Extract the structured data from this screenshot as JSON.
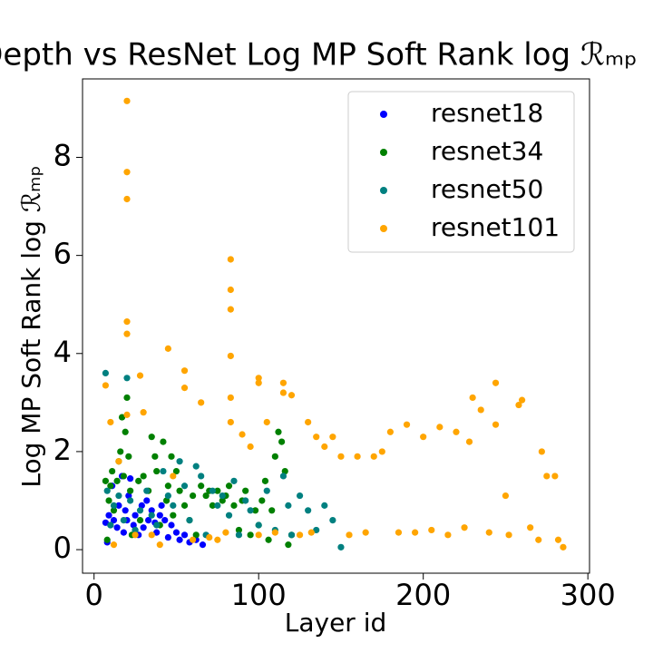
{
  "chart_data": {
    "type": "scatter",
    "title": "Depth vs ResNet Log MP Soft Rank log ℛₘₚ",
    "x_label": "Layer id",
    "y_label": "Log MP Soft Rank log ℛₘₚ",
    "xlim": [
      -7,
      301
    ],
    "ylim": [
      -0.48,
      9.6
    ],
    "xticks": [
      0,
      100,
      200,
      300
    ],
    "yticks": [
      0,
      2,
      4,
      6,
      8
    ],
    "grid": false,
    "legend": "upper right",
    "series": [
      {
        "name": "resnet18",
        "color": "#0000ff",
        "x": [
          7,
          8,
          9,
          10,
          11,
          12,
          14,
          15,
          17,
          18,
          19,
          20,
          21,
          22,
          24,
          25,
          27,
          29,
          30,
          32,
          33,
          35,
          37,
          38,
          40,
          41,
          43,
          45,
          47,
          50,
          52,
          55,
          58,
          62,
          66
        ],
        "values": [
          0.55,
          0.15,
          0.7,
          0.5,
          1.3,
          0.6,
          0.45,
          0.9,
          1.5,
          0.35,
          0.8,
          0.6,
          1.1,
          1.45,
          0.5,
          0.7,
          0.3,
          0.9,
          0.45,
          1.0,
          0.6,
          0.8,
          0.55,
          0.35,
          0.7,
          0.9,
          0.6,
          0.25,
          0.5,
          0.35,
          0.2,
          0.3,
          0.15,
          0.2,
          0.1
        ]
      },
      {
        "name": "resnet34",
        "color": "#008000",
        "x": [
          7,
          8,
          9,
          10,
          11,
          12,
          14,
          15,
          16,
          17,
          18,
          19,
          20,
          21,
          22,
          23,
          25,
          27,
          28,
          30,
          33,
          35,
          37,
          38,
          40,
          42,
          44,
          45,
          47,
          48,
          50,
          52,
          55,
          58,
          60,
          62,
          65,
          68,
          70,
          72,
          75,
          78,
          80,
          82,
          85,
          88,
          90,
          92,
          95,
          98,
          100,
          102,
          104,
          106,
          108,
          110,
          112,
          114,
          116,
          118,
          120
        ],
        "values": [
          1.4,
          0.2,
          1.0,
          1.3,
          1.6,
          0.8,
          1.4,
          1.8,
          2.0,
          2.7,
          1.5,
          2.4,
          3.1,
          1.9,
          1.2,
          0.3,
          0.4,
          1.4,
          0.6,
          1.5,
          1.2,
          2.3,
          1.9,
          1.6,
          0.5,
          2.2,
          1.0,
          1.3,
          1.9,
          0.7,
          1.6,
          1.2,
          0.9,
          0.6,
          1.1,
          0.3,
          1.3,
          1.1,
          1.2,
          0.9,
          1.2,
          1.0,
          1.1,
          1.3,
          0.9,
          0.4,
          1.0,
          1.2,
          0.3,
          0.8,
          0.5,
          1.0,
          1.4,
          0.2,
          0.8,
          1.9,
          2.4,
          2.2,
          1.6,
          0.1,
          0.3
        ]
      },
      {
        "name": "resnet50",
        "color": "#008080",
        "x": [
          7,
          8,
          10,
          12,
          15,
          18,
          20,
          22,
          25,
          28,
          32,
          35,
          38,
          42,
          45,
          48,
          52,
          55,
          58,
          62,
          65,
          68,
          72,
          75,
          78,
          82,
          85,
          88,
          92,
          95,
          100,
          105,
          110,
          115,
          118,
          120,
          125,
          130,
          135,
          140,
          145,
          150
        ],
        "values": [
          3.6,
          1.2,
          0.5,
          0.9,
          1.1,
          0.6,
          3.5,
          1.0,
          0.4,
          0.8,
          1.2,
          0.7,
          0.5,
          1.6,
          1.1,
          0.9,
          1.8,
          1.3,
          0.6,
          1.7,
          1.5,
          0.3,
          1.2,
          0.9,
          1.1,
          0.7,
          1.4,
          0.3,
          1.0,
          0.8,
          0.5,
          1.2,
          0.4,
          1.5,
          0.9,
          0.3,
          1.1,
          0.8,
          0.4,
          0.9,
          0.6,
          0.05
        ]
      },
      {
        "name": "resnet101",
        "color": "#ffa500",
        "x": [
          7,
          10,
          12,
          15,
          20,
          20,
          20,
          20,
          20,
          20,
          25,
          28,
          30,
          35,
          40,
          45,
          48,
          55,
          55,
          60,
          65,
          70,
          75,
          80,
          83,
          83,
          83,
          83,
          83,
          83,
          90,
          95,
          100,
          100,
          100,
          105,
          110,
          115,
          115,
          120,
          125,
          130,
          132,
          135,
          140,
          145,
          150,
          155,
          160,
          165,
          170,
          175,
          180,
          185,
          190,
          195,
          200,
          205,
          210,
          215,
          220,
          225,
          228,
          230,
          235,
          240,
          244,
          244,
          250,
          252,
          258,
          260,
          265,
          270,
          272,
          275,
          280,
          282,
          285
        ],
        "values": [
          3.35,
          2.6,
          0.1,
          1.8,
          9.15,
          7.7,
          7.15,
          4.65,
          4.4,
          2.75,
          0.3,
          3.55,
          2.8,
          0.3,
          0.1,
          4.1,
          1.5,
          3.65,
          3.3,
          0.2,
          3.0,
          0.25,
          0.2,
          0.35,
          5.92,
          5.3,
          4.9,
          3.95,
          3.1,
          2.6,
          2.35,
          2.1,
          3.5,
          3.4,
          0.3,
          2.6,
          0.35,
          3.4,
          3.2,
          3.15,
          0.3,
          2.6,
          0.35,
          2.3,
          2.1,
          2.3,
          1.9,
          0.3,
          1.9,
          0.35,
          1.9,
          2.0,
          2.4,
          0.35,
          2.55,
          0.35,
          2.3,
          0.4,
          2.5,
          0.3,
          2.4,
          0.45,
          2.2,
          3.1,
          2.85,
          0.35,
          3.4,
          2.55,
          1.1,
          0.3,
          2.95,
          3.05,
          0.45,
          0.2,
          2.0,
          1.5,
          1.5,
          0.2,
          0.05
        ]
      }
    ]
  }
}
